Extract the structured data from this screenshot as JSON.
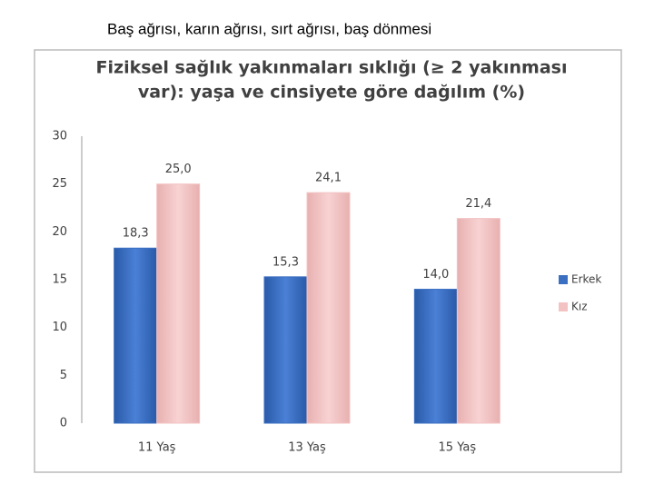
{
  "header": {
    "title": "Baş ağrısı, karın ağrısı, sırt ağrısı, baş dönmesi"
  },
  "chart_data": {
    "type": "bar",
    "title": [
      "Fiziksel sağlık yakınmaları sıklığı (≥ 2 yakınması",
      "var): yaşa ve cinsiyete göre dağılım  (%)"
    ],
    "categories": [
      "11 Yaş",
      "13 Yaş",
      "15 Yaş"
    ],
    "series": [
      {
        "name": "Erkek",
        "color": "#3b6fc2",
        "values": [
          18.3,
          15.3,
          14.0
        ],
        "value_labels": [
          "18,3",
          "15,3",
          "14,0"
        ]
      },
      {
        "name": "Kız",
        "color": "#f3c3c3",
        "values": [
          25.0,
          24.1,
          21.4
        ],
        "value_labels": [
          "25,0",
          "24,1",
          "21,4"
        ]
      }
    ],
    "ylim": [
      0,
      30
    ],
    "yticks": [
      0,
      5,
      10,
      15,
      20,
      25,
      30
    ],
    "grid": false,
    "legend": "right"
  }
}
